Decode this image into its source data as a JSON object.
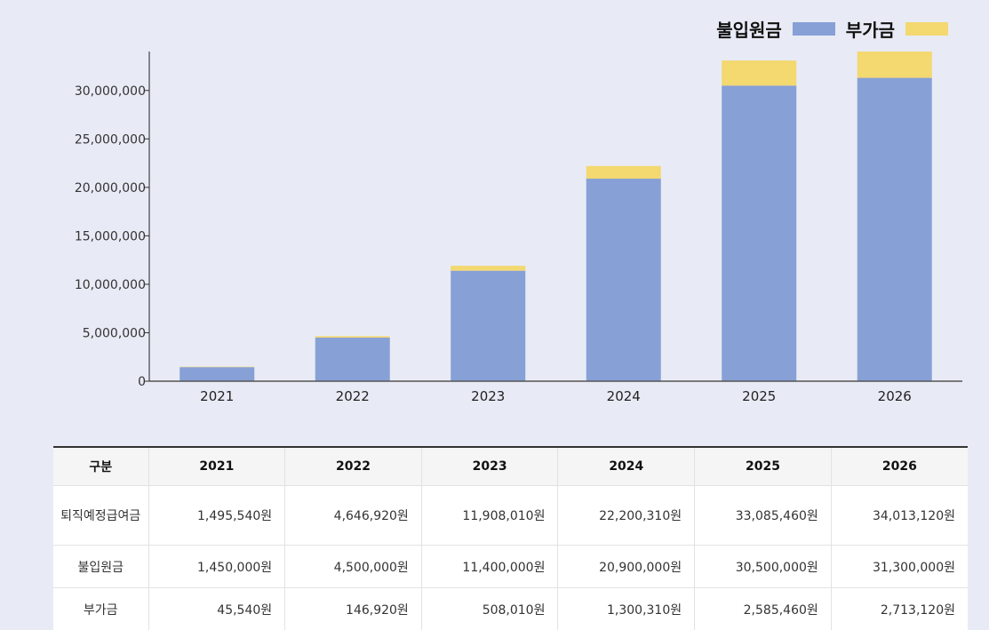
{
  "legend": [
    {
      "label": "불입원금",
      "color": "#87a0d6"
    },
    {
      "label": "부가금",
      "color": "#f4d870"
    }
  ],
  "chart_data": {
    "type": "bar",
    "stacked": true,
    "categories": [
      "2021",
      "2022",
      "2023",
      "2024",
      "2025",
      "2026"
    ],
    "series": [
      {
        "name": "불입원금",
        "color": "#87a0d6",
        "values": [
          1450000,
          4500000,
          11400000,
          20900000,
          30500000,
          31300000
        ]
      },
      {
        "name": "부가금",
        "color": "#f4d870",
        "values": [
          45540,
          146920,
          508010,
          1300310,
          2585460,
          2713120
        ]
      }
    ],
    "ylim": [
      0,
      34013120
    ],
    "yticks": [
      0,
      5000000,
      10000000,
      15000000,
      20000000,
      25000000,
      30000000
    ],
    "ytick_labels": [
      "0",
      "5,000,000",
      "10,000,000",
      "15,000,000",
      "20,000,000",
      "25,000,000",
      "30,000,000"
    ],
    "grid": false,
    "legend_position": "top-right"
  },
  "table": {
    "headers": [
      "구분",
      "2021",
      "2022",
      "2023",
      "2024",
      "2025",
      "2026"
    ],
    "rows": [
      [
        "퇴직예정급여금",
        "1,495,540원",
        "4,646,920원",
        "11,908,010원",
        "22,200,310원",
        "33,085,460원",
        "34,013,120원"
      ],
      [
        "불입원금",
        "1,450,000원",
        "4,500,000원",
        "11,400,000원",
        "20,900,000원",
        "30,500,000원",
        "31,300,000원"
      ],
      [
        "부가금",
        "45,540원",
        "146,920원",
        "508,010원",
        "1,300,310원",
        "2,585,460원",
        "2,713,120원"
      ]
    ]
  }
}
